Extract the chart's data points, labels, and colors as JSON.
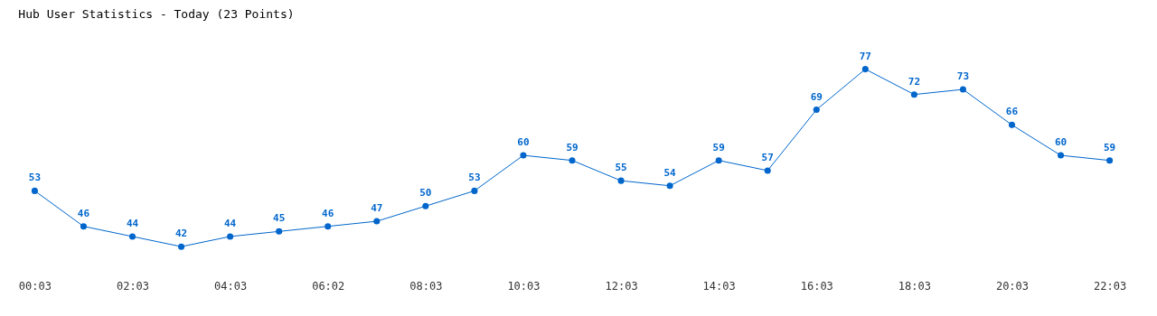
{
  "chart_data": {
    "type": "line",
    "title": "Hub User Statistics - Today (23 Points)",
    "categories": [
      "00:03",
      null,
      "02:03",
      null,
      "04:03",
      null,
      "06:02",
      null,
      "08:03",
      null,
      "10:03",
      null,
      "12:03",
      null,
      "14:03",
      null,
      "16:03",
      null,
      "18:03",
      null,
      "20:03",
      null,
      "22:03"
    ],
    "series": [
      {
        "color": "#0066cc",
        "values": [
          53,
          46,
          44,
          42,
          44,
          45,
          46,
          47,
          50,
          53,
          60,
          59,
          55,
          54,
          59,
          57,
          69,
          77,
          72,
          73,
          66,
          60,
          59
        ]
      }
    ],
    "data_labels": true,
    "marker": "circle",
    "grid": false,
    "legend": false
  }
}
